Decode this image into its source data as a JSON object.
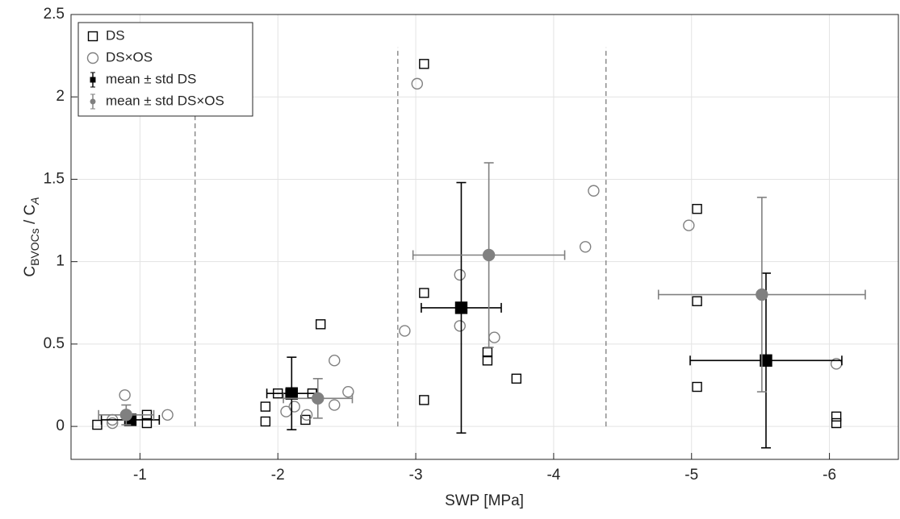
{
  "chart_data": {
    "type": "scatter",
    "xlabel": "SWP [MPa]",
    "ylabel": [
      "C",
      "BVOCs",
      " / C",
      "A"
    ],
    "xlim": [
      -0.5,
      -6.5
    ],
    "ylim": [
      -0.2,
      2.5
    ],
    "xticks": [
      -1,
      -2,
      -3,
      -4,
      -5,
      -6
    ],
    "yticks": [
      0,
      0.5,
      1,
      1.5,
      2,
      2.5
    ],
    "grid": true,
    "legend": "upper left",
    "vlines": [
      {
        "x": -1.4,
        "y": [
          0,
          1.9
        ]
      },
      {
        "x": -2.87,
        "y": [
          0,
          2.3
        ]
      },
      {
        "x": -4.38,
        "y": [
          0,
          2.3
        ]
      }
    ],
    "series": [
      {
        "name": "DS",
        "color": "#000000",
        "marker": "square-open",
        "x": [
          -0.69,
          -1.05,
          -1.05,
          -1.91,
          -1.91,
          -2.0,
          -2.09,
          -2.2,
          -2.25,
          -2.31,
          -3.06,
          -3.06,
          -3.06,
          -3.52,
          -3.52,
          -3.73,
          -5.04,
          -5.04,
          -5.04,
          -6.05,
          -6.05
        ],
        "values": [
          0.01,
          0.07,
          0.02,
          0.12,
          0.03,
          0.2,
          0.2,
          0.04,
          0.2,
          0.62,
          2.2,
          0.81,
          0.16,
          0.45,
          0.4,
          0.29,
          1.32,
          0.76,
          0.24,
          0.06,
          0.02
        ]
      },
      {
        "name": "DS×OS",
        "color": "#808080",
        "marker": "circle-open",
        "x": [
          -0.89,
          -0.8,
          -0.8,
          -1.2,
          -2.06,
          -2.12,
          -2.21,
          -2.41,
          -2.41,
          -2.51,
          -2.92,
          -3.01,
          -3.32,
          -3.32,
          -3.57,
          -4.23,
          -4.29,
          -4.98,
          -6.05
        ],
        "values": [
          0.19,
          0.04,
          0.02,
          0.07,
          0.09,
          0.12,
          0.07,
          0.4,
          0.13,
          0.21,
          0.58,
          2.08,
          0.92,
          0.61,
          0.54,
          1.09,
          1.43,
          1.22,
          0.38
        ]
      },
      {
        "name": "mean ± std DS",
        "color": "#000000",
        "marker": "square-filled",
        "x": [
          -0.93,
          -2.1,
          -3.33,
          -5.54
        ],
        "values": [
          0.04,
          0.2,
          0.72,
          0.4
        ],
        "xerr": [
          0.21,
          0.18,
          0.29,
          0.55
        ],
        "yerr": [
          0.03,
          0.22,
          0.76,
          0.53
        ]
      },
      {
        "name": "mean ± std DS×OS",
        "color": "#808080",
        "marker": "circle-filled",
        "x": [
          -0.9,
          -2.29,
          -3.53,
          -5.51
        ],
        "values": [
          0.07,
          0.17,
          1.04,
          0.8
        ],
        "xerr": [
          0.2,
          0.25,
          0.55,
          0.75
        ],
        "yerr": [
          0.06,
          0.12,
          0.56,
          0.59
        ]
      }
    ]
  }
}
